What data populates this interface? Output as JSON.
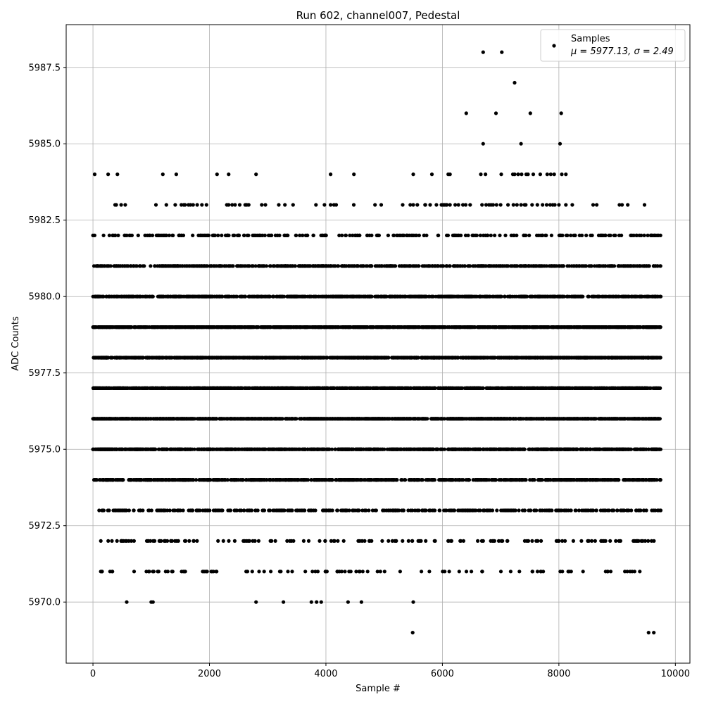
{
  "chart_data": {
    "type": "scatter",
    "title": "Run 602, channel007, Pedestal",
    "xlabel": "Sample #",
    "ylabel": "ADC Counts",
    "xlim": [
      -460,
      10250
    ],
    "ylim": [
      5968.0,
      5988.9
    ],
    "xticks": [
      0,
      2000,
      4000,
      6000,
      8000,
      10000
    ],
    "xtick_labels": [
      "0",
      "2000",
      "4000",
      "6000",
      "8000",
      "10000"
    ],
    "yticks": [
      5970.0,
      5972.5,
      5975.0,
      5977.5,
      5980.0,
      5982.5,
      5985.0,
      5987.5
    ],
    "ytick_labels": [
      "5970.0",
      "5972.5",
      "5975.0",
      "5977.5",
      "5980.0",
      "5982.5",
      "5985.0",
      "5987.5"
    ],
    "grid": true,
    "legend_position": "top-right",
    "series": [
      {
        "name": "Samples",
        "color": "#000000",
        "n_samples": 9750,
        "levels": [
          {
            "y": 5980,
            "count": 900,
            "x_range": [
              0,
              9750
            ]
          },
          {
            "y": 5979,
            "count": 1200,
            "x_range": [
              0,
              9750
            ]
          },
          {
            "y": 5978,
            "count": 1300,
            "x_range": [
              0,
              9750
            ]
          },
          {
            "y": 5977,
            "count": 1400,
            "x_range": [
              0,
              9750
            ]
          },
          {
            "y": 5976,
            "count": 1300,
            "x_range": [
              0,
              9750
            ]
          },
          {
            "y": 5975,
            "count": 1100,
            "x_range": [
              0,
              9750
            ]
          },
          {
            "y": 5974,
            "count": 750,
            "x_range": [
              0,
              9750
            ]
          },
          {
            "y": 5973,
            "count": 420,
            "x_range": [
              0,
              9750
            ]
          },
          {
            "y": 5981,
            "count": 600,
            "x_range": [
              0,
              9750
            ]
          },
          {
            "y": 5982,
            "count": 260,
            "x_range": [
              0,
              9750
            ]
          },
          {
            "y": 5983,
            "count": 40,
            "x_range": [
              370,
              9470
            ]
          },
          {
            "y": 5972,
            "count": 150,
            "x_range": [
              100,
              9650
            ]
          },
          {
            "y": 5971,
            "count": 100,
            "x_range": [
              40,
              9620
            ]
          }
        ],
        "sparse_points": [
          [
            30,
            5984
          ],
          [
            260,
            5984
          ],
          [
            420,
            5984
          ],
          [
            1200,
            5984
          ],
          [
            1430,
            5984
          ],
          [
            2130,
            5984
          ],
          [
            2330,
            5984
          ],
          [
            2800,
            5984
          ],
          [
            4080,
            5984
          ],
          [
            4480,
            5984
          ],
          [
            5500,
            5984
          ],
          [
            5820,
            5984
          ],
          [
            6100,
            5984
          ],
          [
            6130,
            5984
          ],
          [
            6660,
            5984
          ],
          [
            6740,
            5984
          ],
          [
            7010,
            5984
          ],
          [
            7210,
            5984
          ],
          [
            7240,
            5984
          ],
          [
            7300,
            5984
          ],
          [
            7360,
            5984
          ],
          [
            7440,
            5984
          ],
          [
            7470,
            5984
          ],
          [
            7560,
            5984
          ],
          [
            7680,
            5984
          ],
          [
            7800,
            5984
          ],
          [
            7860,
            5984
          ],
          [
            7920,
            5984
          ],
          [
            8050,
            5984
          ],
          [
            8120,
            5984
          ],
          [
            380,
            5983
          ],
          [
            400,
            5983
          ],
          [
            1560,
            5983
          ],
          [
            1640,
            5983
          ],
          [
            1720,
            5983
          ],
          [
            1790,
            5983
          ],
          [
            1870,
            5983
          ],
          [
            2330,
            5983
          ],
          [
            2390,
            5983
          ],
          [
            2440,
            5983
          ],
          [
            2520,
            5983
          ],
          [
            2640,
            5983
          ],
          [
            3190,
            5983
          ],
          [
            4080,
            5983
          ],
          [
            4950,
            5983
          ],
          [
            5500,
            5983
          ],
          [
            5570,
            5983
          ],
          [
            5790,
            5983
          ],
          [
            6010,
            5983
          ],
          [
            6060,
            5983
          ],
          [
            6130,
            5983
          ],
          [
            6220,
            5983
          ],
          [
            6400,
            5983
          ],
          [
            6680,
            5983
          ],
          [
            6750,
            5983
          ],
          [
            6800,
            5983
          ],
          [
            6870,
            5983
          ],
          [
            6930,
            5983
          ],
          [
            7000,
            5983
          ],
          [
            7220,
            5983
          ],
          [
            7280,
            5983
          ],
          [
            7350,
            5983
          ],
          [
            7410,
            5983
          ],
          [
            7540,
            5983
          ],
          [
            7630,
            5983
          ],
          [
            7720,
            5983
          ],
          [
            7790,
            5983
          ],
          [
            7850,
            5983
          ],
          [
            7930,
            5983
          ],
          [
            8000,
            5983
          ],
          [
            8120,
            5983
          ],
          [
            8230,
            5983
          ],
          [
            8650,
            5983
          ],
          [
            9040,
            5983
          ],
          [
            9470,
            5983
          ],
          [
            6410,
            5986
          ],
          [
            6920,
            5986
          ],
          [
            7510,
            5986
          ],
          [
            8040,
            5986
          ],
          [
            6700,
            5985
          ],
          [
            7350,
            5985
          ],
          [
            8020,
            5985
          ],
          [
            6700,
            5988
          ],
          [
            7020,
            5988
          ],
          [
            7240,
            5987
          ],
          [
            580,
            5970
          ],
          [
            1000,
            5970
          ],
          [
            1030,
            5970
          ],
          [
            2800,
            5970
          ],
          [
            3270,
            5970
          ],
          [
            3750,
            5970
          ],
          [
            3840,
            5970
          ],
          [
            3920,
            5970
          ],
          [
            4380,
            5970
          ],
          [
            4610,
            5970
          ],
          [
            5500,
            5970
          ],
          [
            5490,
            5969
          ],
          [
            9540,
            5969
          ],
          [
            9630,
            5969
          ]
        ]
      }
    ],
    "legend": {
      "marker_label": "Samples",
      "stats_text": "μ = 5977.13, σ = 2.49"
    }
  }
}
